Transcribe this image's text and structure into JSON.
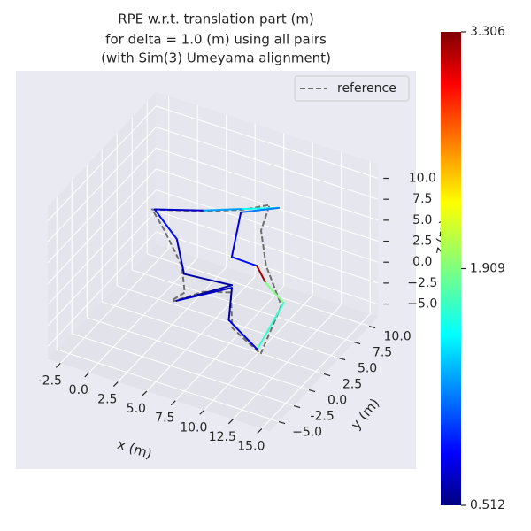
{
  "chart_data": {
    "type": "line3d",
    "title": [
      "RPE w.r.t. translation part (m)",
      "for delta = 1.0 (m) using all pairs",
      "(with Sim(3) Umeyama alignment)"
    ],
    "xlabel": "x (m)",
    "ylabel": "y (m)",
    "zlabel": "z (m)",
    "xlim": [
      -3.6,
      15.7
    ],
    "ylim": [
      -6.5,
      11.5
    ],
    "zlim": [
      -6.5,
      11.7
    ],
    "xticks": [
      -2.5,
      {
        "value": 0,
        "label": "0.0"
      },
      2.5,
      {
        "value": 5,
        "label": "5.0"
      },
      7.5,
      {
        "value": 10,
        "label": "10.0"
      },
      12.5,
      {
        "value": 15,
        "label": "15.0"
      }
    ],
    "yticks": [
      {
        "value": -5,
        "label": "−5.0"
      },
      -2.5,
      {
        "value": 0,
        "label": "0.0"
      },
      2.5,
      {
        "value": 5,
        "label": "5.0"
      },
      7.5,
      {
        "value": 10,
        "label": "10.0"
      }
    ],
    "zticks": [
      {
        "value": -5,
        "label": "−5.0"
      },
      {
        "value": -2.5,
        "label": "−2.5"
      },
      {
        "value": 0,
        "label": "0.0"
      },
      2.5,
      {
        "value": 5,
        "label": "5.0"
      },
      7.5,
      {
        "value": 10,
        "label": "10.0"
      }
    ],
    "grid": true,
    "legend": "upper right",
    "series": [
      {
        "name": "reference",
        "color": "#6e6e6e",
        "style": "dashed",
        "x": [
          3.9,
          4.9,
          3.6,
          0.5,
          -2.1,
          2.4,
          5.8,
          8.1,
          8.4,
          10.4,
          13.3,
          13.6,
          10.6,
          8.9,
          6.5,
          3.9
        ],
        "y": [
          0,
          0,
          2,
          5,
          8,
          8,
          8,
          8,
          6,
          3,
          0,
          -4,
          -3,
          0,
          0,
          0
        ],
        "z": [
          -1.0,
          0.3,
          1.4,
          2.0,
          1.0,
          2.8,
          4.5,
          6.1,
          4.7,
          3.7,
          2.5,
          -0.1,
          0.9,
          2.1,
          1.1,
          -1.2
        ]
      },
      {
        "colormap": "jet",
        "x": [
          4.2,
          9.0,
          3.8,
          1.6,
          -1.9,
          2.4,
          5.8,
          8.9,
          5.6,
          6.9,
          9.6,
          10.9,
          13.5,
          13.3,
          10.3,
          9.0,
          4.2
        ],
        "y": [
          0,
          0,
          2,
          5,
          8,
          8,
          8,
          8,
          8,
          4,
          3,
          2,
          0,
          -4,
          -3,
          0,
          0
        ],
        "z": [
          -1.0,
          3.0,
          0.5,
          1.4,
          1.1,
          2.9,
          4.6,
          6.1,
          4.1,
          2.4,
          3.3,
          2.6,
          2.9,
          0.3,
          1.7,
          2.7,
          -1.0
        ],
        "error": [
          0.6,
          0.6,
          0.7,
          0.9,
          0.7,
          1.3,
          1.6,
          1.2,
          0.8,
          0.9,
          3.2,
          1.9,
          1.7,
          0.8,
          0.6,
          0.7,
          0.6
        ]
      }
    ],
    "colorbar": {
      "clim": [
        0.512,
        3.306
      ],
      "ticks": [
        0.512,
        1.909,
        3.306
      ]
    }
  }
}
